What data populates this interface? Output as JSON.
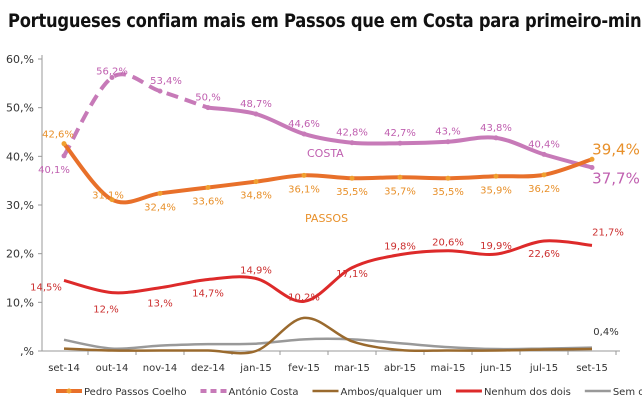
{
  "chart_data": {
    "type": "line",
    "title": "Portugueses confiam mais em Passos que em Costa para primeiro-ministro",
    "categories": [
      "set-14",
      "out-14",
      "nov-14",
      "dez-14",
      "jan-15",
      "fev-15",
      "mar-15",
      "abr-15",
      "mai-15",
      "jun-15",
      "jul-15",
      "set-15"
    ],
    "yticks": [
      "60,%",
      "50,%",
      "40,%",
      "30,%",
      "20,%",
      "10,%",
      ",%"
    ],
    "ylim": [
      0,
      60
    ],
    "legend_position": "bottom",
    "series": [
      {
        "name": "Pedro Passos Coelho",
        "color": "#e8702a",
        "label_color": "#e8902a",
        "values": [
          42.6,
          31.1,
          32.4,
          33.6,
          34.8,
          36.1,
          35.5,
          35.7,
          35.5,
          35.9,
          36.2,
          39.4
        ],
        "labels": [
          "42,6%",
          "31,1%",
          "32,4%",
          "33,6%",
          "34,8%",
          "36,1%",
          "35,5%",
          "35,7%",
          "35,5%",
          "35,9%",
          "36,2%",
          "39,4%"
        ],
        "inline_name": "PASSOS"
      },
      {
        "name": "António Costa",
        "color": "#c77ab8",
        "label_color": "#c060b0",
        "dashed_until": 3,
        "values": [
          40.1,
          56.2,
          53.4,
          50.0,
          48.7,
          44.6,
          42.8,
          42.7,
          43.0,
          43.8,
          40.4,
          37.7
        ],
        "labels": [
          "40,1%",
          "56,2%",
          "53,4%",
          "50,%",
          "48,7%",
          "44,6%",
          "42,8%",
          "42,7%",
          "43,%",
          "43,8%",
          "40,4%",
          "37,7%"
        ],
        "inline_name": "COSTA"
      },
      {
        "name": "Ambos/qualquer um",
        "color": "#9a6a2e",
        "values": [
          0.5,
          0.1,
          0.1,
          0.1,
          0.0,
          6.8,
          2.0,
          0.2,
          0.1,
          0.1,
          0.3,
          0.4
        ],
        "labels": [
          "",
          "",
          "",
          "",
          "",
          "",
          "",
          "",
          "",
          "",
          "",
          "0,4%"
        ]
      },
      {
        "name": "Nenhum dos dois",
        "color": "#dd2a2a",
        "label_color": "#cc3030",
        "values": [
          14.5,
          12.0,
          13.0,
          14.7,
          14.9,
          10.2,
          17.1,
          19.8,
          20.6,
          19.9,
          22.6,
          21.7
        ],
        "labels": [
          "14,5%",
          "12,%",
          "13,%",
          "14,7%",
          "14,9%",
          "10,2%",
          "17,1%",
          "19,8%",
          "20,6%",
          "19,9%",
          "22,6%",
          "21,7%"
        ]
      },
      {
        "name": "Sem opinião",
        "color": "#999999",
        "values": [
          2.3,
          0.5,
          1.1,
          1.4,
          1.5,
          2.4,
          2.4,
          1.6,
          0.8,
          0.4,
          0.5,
          0.7
        ],
        "labels": []
      }
    ]
  }
}
